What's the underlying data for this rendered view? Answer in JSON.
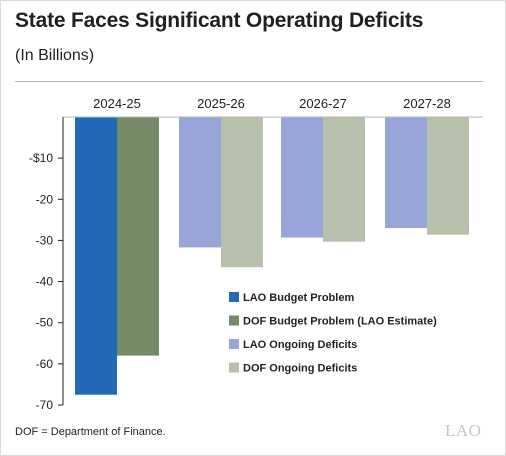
{
  "header": {
    "title": "State Faces Significant Operating Deficits",
    "subtitle": "(In Billions)"
  },
  "footer": {
    "note": "DOF = Department of Finance.",
    "logo_text": "LAO"
  },
  "colors": {
    "lao_budget": "#2269b7",
    "dof_budget": "#758b68",
    "lao_ongoing": "#97a5d9",
    "dof_ongoing": "#b6c0ab",
    "axis": "#231f20",
    "gridline": "#b7b7b7"
  },
  "chart_data": {
    "type": "bar",
    "categories": [
      "2024-25",
      "2025-26",
      "2026-27",
      "2027-28"
    ],
    "series": [
      {
        "name": "LAO Budget Problem",
        "color": "#2269b7",
        "values": [
          -67.5,
          null,
          null,
          null
        ]
      },
      {
        "name": "DOF Budget Problem (LAO Estimate)",
        "color": "#758b68",
        "values": [
          -58,
          null,
          null,
          null
        ]
      },
      {
        "name": "LAO Ongoing Deficits",
        "color": "#97a5d9",
        "values": [
          null,
          -31.7,
          -29.3,
          -27
        ]
      },
      {
        "name": "DOF Ongoing Deficits",
        "color": "#b6c0ab",
        "values": [
          null,
          -36.5,
          -30.3,
          -28.6
        ]
      }
    ],
    "ylim": [
      -70,
      0
    ],
    "y_ticks": [
      -10,
      -20,
      -30,
      -40,
      -50,
      -60,
      -70
    ],
    "y_tick_labels": [
      "-$10",
      "-20",
      "-30",
      "-40",
      "-50",
      "-60",
      "-70"
    ],
    "legend_position": "lower-right",
    "grid": false
  }
}
